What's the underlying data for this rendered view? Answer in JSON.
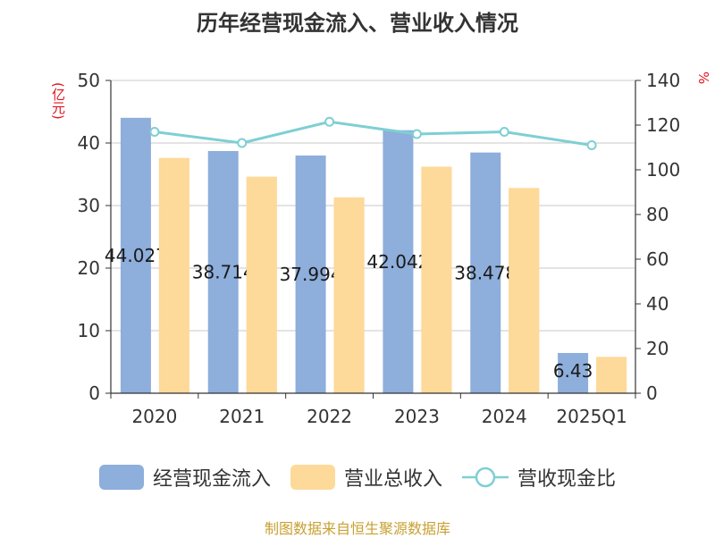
{
  "chart_data": {
    "type": "bar",
    "title": "历年经营现金流入、营业收入情况",
    "ylabel": "(亿元)",
    "y2label": "%",
    "categories": [
      "2020",
      "2021",
      "2022",
      "2023",
      "2024",
      "2025Q1"
    ],
    "ylim": [
      0,
      50
    ],
    "yticks": [
      0,
      10,
      20,
      30,
      40,
      50
    ],
    "y2lim": [
      0,
      140
    ],
    "y2ticks": [
      0,
      20,
      40,
      60,
      80,
      100,
      120,
      140
    ],
    "series": [
      {
        "name": "经营现金流入",
        "type": "bar",
        "color": "#8eaedb",
        "values": [
          44.027,
          38.714,
          37.994,
          42.042,
          38.478,
          6.43
        ],
        "labels": [
          "44.027",
          "38.714",
          "37.994",
          "42.042",
          "38.478",
          "6.43"
        ]
      },
      {
        "name": "营业总收入",
        "type": "bar",
        "color": "#fdd99a",
        "values": [
          37.6,
          34.6,
          31.3,
          36.2,
          32.8,
          5.8
        ]
      },
      {
        "name": "营收现金比",
        "type": "line",
        "axis": "right",
        "color": "#7ecfd4",
        "values": [
          117,
          112,
          121.5,
          116,
          117,
          111
        ]
      }
    ],
    "legend": "bottom",
    "grid": true
  },
  "footer": {
    "source": "制图数据来自恒生聚源数据库"
  }
}
